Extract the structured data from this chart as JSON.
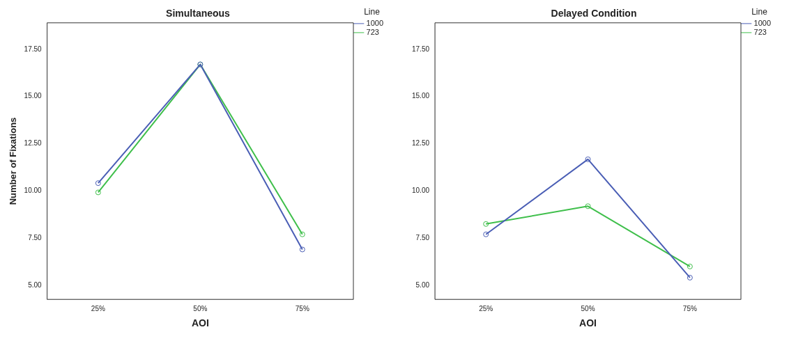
{
  "chart_data": [
    {
      "type": "line",
      "title": "Simultaneous",
      "xlabel": "AOI",
      "ylabel": "Number of Fixations",
      "legend_title": "Line",
      "categories": [
        "25%",
        "50%",
        "75%"
      ],
      "series": [
        {
          "name": "1000",
          "color": "#4a5eb5",
          "values": [
            10.42,
            16.7,
            6.91
          ]
        },
        {
          "name": "723",
          "color": "#3fbf4b",
          "values": [
            9.93,
            16.7,
            7.71
          ]
        }
      ],
      "ylim": [
        4.27,
        18.9
      ],
      "yticks": [
        {
          "value": 5,
          "label": "5.00"
        },
        {
          "value": 7.5,
          "label": "7.50"
        },
        {
          "value": 10,
          "label": "10.00"
        },
        {
          "value": 12.5,
          "label": "12.50"
        },
        {
          "value": 15,
          "label": "15.00"
        },
        {
          "value": 17.5,
          "label": "17.50"
        }
      ],
      "grid": false,
      "legend": "top right",
      "marker": "circle"
    },
    {
      "type": "line",
      "title": "Delayed Condition",
      "xlabel": "AOI",
      "legend_title": "Line",
      "categories": [
        "25%",
        "50%",
        "75%"
      ],
      "series": [
        {
          "name": "1000",
          "color": "#4a5eb5",
          "values": [
            7.71,
            11.68,
            5.42
          ]
        },
        {
          "name": "723",
          "color": "#3fbf4b",
          "values": [
            8.26,
            9.2,
            6.01
          ]
        }
      ],
      "ylim": [
        4.27,
        18.9
      ],
      "yticks": [
        {
          "value": 5,
          "label": "5.00"
        },
        {
          "value": 7.5,
          "label": "7.50"
        },
        {
          "value": 10,
          "label": "10.00"
        },
        {
          "value": 12.5,
          "label": "12.50"
        },
        {
          "value": 15,
          "label": "15.00"
        },
        {
          "value": 17.5,
          "label": "17.50"
        }
      ],
      "grid": false,
      "legend": "top right",
      "marker": "circle"
    }
  ]
}
